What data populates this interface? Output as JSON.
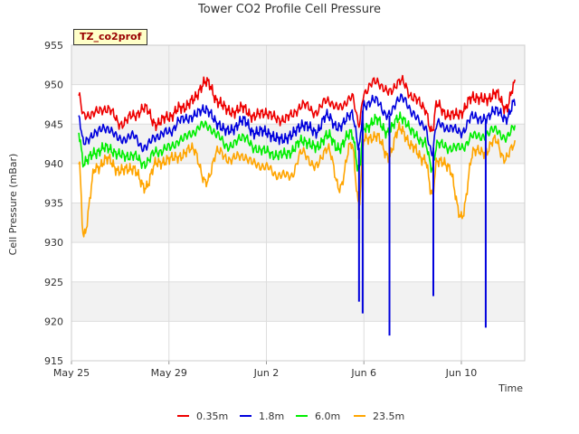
{
  "title": "Tower CO2 Profile Cell Pressure",
  "site_label": "TZ_co2prof",
  "colors": {
    "0.35m": "#ee0000",
    "1.8m": "#0000dd",
    "6.0m": "#00ee00",
    "23.5m": "#ffa500",
    "band": "#f2f2f2",
    "grid": "#dddddd"
  },
  "legend": [
    {
      "label": "0.35m",
      "color": "#ee0000"
    },
    {
      "label": "1.8m",
      "color": "#0000dd"
    },
    {
      "label": "6.0m",
      "color": "#00ee00"
    },
    {
      "label": "23.5m",
      "color": "#ffa500"
    }
  ],
  "chart_data": {
    "type": "line",
    "title": "Tower CO2 Profile Cell Pressure",
    "xlabel": "Time",
    "ylabel": "Cell Pressure (mBar)",
    "x_unit": "days since May 25",
    "xlim": [
      0,
      18.6
    ],
    "ylim": [
      915,
      955
    ],
    "yticks": [
      915,
      920,
      925,
      930,
      935,
      940,
      945,
      950,
      955
    ],
    "xticks": [
      {
        "pos": 0,
        "label": "May 25"
      },
      {
        "pos": 4,
        "label": "May 29"
      },
      {
        "pos": 8,
        "label": "Jun 2"
      },
      {
        "pos": 12,
        "label": "Jun 6"
      },
      {
        "pos": 16,
        "label": "Jun 10"
      }
    ],
    "grid": true,
    "legend_position": "bottom",
    "x": [
      0.3,
      0.5,
      1.0,
      1.5,
      2.0,
      2.5,
      3.0,
      3.5,
      4.0,
      4.5,
      5.0,
      5.5,
      6.0,
      6.5,
      7.0,
      7.5,
      8.0,
      8.5,
      9.0,
      9.5,
      10.0,
      10.5,
      11.0,
      11.5,
      11.8,
      12.0,
      12.5,
      13.0,
      13.5,
      14.0,
      14.5,
      14.8,
      15.0,
      15.5,
      16.0,
      16.5,
      17.0,
      17.4,
      17.8,
      18.2
    ],
    "series": [
      {
        "name": "0.35m",
        "values": [
          948.5,
          946.0,
          946.5,
          947.0,
          945.0,
          946.0,
          947.0,
          945.0,
          946.0,
          947.0,
          948.0,
          950.5,
          948.0,
          946.5,
          947.0,
          946.0,
          946.5,
          945.5,
          946.0,
          947.5,
          946.5,
          948.0,
          947.0,
          948.5,
          945.0,
          949.0,
          950.5,
          949.0,
          950.5,
          948.5,
          947.0,
          944.0,
          947.5,
          946.0,
          946.5,
          948.5,
          948.0,
          949.0,
          947.0,
          950.0
        ]
      },
      {
        "name": "1.8m",
        "values": [
          946.0,
          942.5,
          944.0,
          944.5,
          943.0,
          943.5,
          942.0,
          943.5,
          944.0,
          945.5,
          946.0,
          947.0,
          945.0,
          944.0,
          945.5,
          944.0,
          944.0,
          943.0,
          943.5,
          945.0,
          944.0,
          946.0,
          944.5,
          946.5,
          942.0,
          947.5,
          948.0,
          946.0,
          948.5,
          946.5,
          944.5,
          941.5,
          945.0,
          944.5,
          944.0,
          946.0,
          945.5,
          947.0,
          945.5,
          948.0
        ]
      },
      {
        "name": "6.0m",
        "values": [
          944.0,
          940.0,
          941.5,
          942.0,
          941.0,
          941.0,
          940.0,
          941.5,
          942.0,
          943.0,
          944.0,
          945.0,
          943.5,
          942.0,
          943.5,
          942.0,
          941.5,
          941.0,
          941.5,
          943.0,
          942.0,
          943.5,
          942.0,
          944.0,
          939.0,
          944.5,
          945.5,
          944.0,
          946.0,
          944.0,
          942.5,
          939.5,
          942.5,
          942.0,
          942.0,
          943.5,
          943.5,
          944.5,
          943.0,
          945.0
        ]
      },
      {
        "name": "23.5m",
        "values": [
          940.5,
          931.0,
          939.5,
          940.5,
          939.0,
          939.5,
          937.0,
          940.0,
          940.5,
          941.0,
          942.0,
          937.5,
          941.5,
          940.5,
          941.0,
          940.0,
          939.5,
          938.5,
          938.5,
          941.5,
          939.5,
          942.0,
          937.0,
          942.5,
          935.0,
          943.0,
          943.5,
          941.0,
          944.5,
          942.0,
          940.5,
          936.0,
          940.5,
          939.5,
          933.0,
          941.5,
          941.5,
          943.0,
          940.5,
          942.5
        ]
      }
    ],
    "dropouts": [
      {
        "series": "1.8m",
        "x": 11.8,
        "min": 922.5
      },
      {
        "series": "1.8m",
        "x": 11.95,
        "min": 921.0
      },
      {
        "series": "1.8m",
        "x": 13.05,
        "min": 918.2
      },
      {
        "series": "1.8m",
        "x": 14.85,
        "min": 923.2
      },
      {
        "series": "1.8m",
        "x": 17.0,
        "min": 919.2
      },
      {
        "series": "23.5m",
        "x": 11.8,
        "min": 933.0
      },
      {
        "series": "23.5m",
        "x": 14.85,
        "min": 931.5
      }
    ]
  }
}
